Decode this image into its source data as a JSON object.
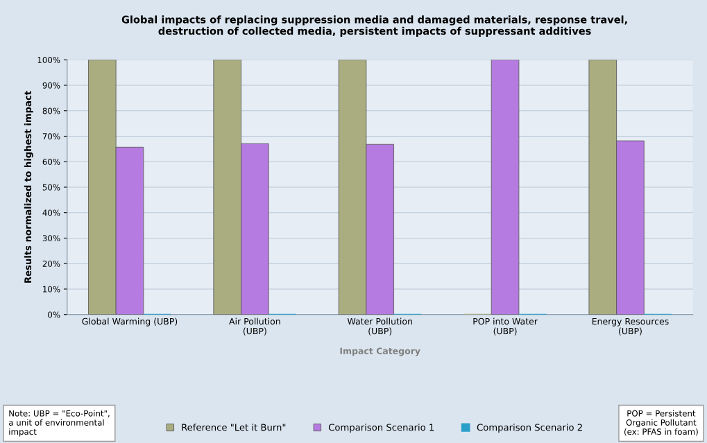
{
  "chart_data": {
    "type": "bar",
    "title": "Global impacts of replacing suppression media and damaged materials, response travel,\ndestruction of collected media, persistent impacts of suppressant additives",
    "xlabel": "Impact Category",
    "ylabel": "Results normalized to highest impact",
    "categories": [
      "Global Warming (UBP)",
      "Air Pollution\n(UBP)",
      "Water Pollution\n(UBP)",
      "POP into Water\n(UBP)",
      "Energy Resources\n(UBP)"
    ],
    "series": [
      {
        "name": "Reference \"Let it Burn\"",
        "color": "#a9ad80",
        "values": [
          100,
          100,
          100,
          0,
          100
        ]
      },
      {
        "name": "Comparison Scenario 1",
        "color": "#b67be0",
        "values": [
          65.7,
          67.1,
          66.8,
          100,
          68.2
        ]
      },
      {
        "name": "Comparison Scenario 2",
        "color": "#2a9fc9",
        "values": [
          0,
          0,
          0,
          0,
          0
        ]
      }
    ],
    "ylim": [
      0,
      100
    ],
    "yticks": [
      {
        "value": 0,
        "label": "0%"
      },
      {
        "value": 10,
        "label": "10%"
      },
      {
        "value": 20,
        "label": "20%"
      },
      {
        "value": 30,
        "label": "30%"
      },
      {
        "value": 40,
        "label": "40%"
      },
      {
        "value": 50,
        "label": "50%"
      },
      {
        "value": 60,
        "label": "60%"
      },
      {
        "value": 70,
        "label": "70%"
      },
      {
        "value": 80,
        "label": "80%"
      },
      {
        "value": 90,
        "label": "90%"
      },
      {
        "value": 100,
        "label": "100%"
      }
    ],
    "grid": "y",
    "legend": "bottom",
    "annotations": [
      "Note: UBP = \"Eco-Point\",\na unit of environmental\nimpact",
      "POP = Persistent\nOrganic Pollutant\n(ex: PFAS in foam)"
    ]
  }
}
